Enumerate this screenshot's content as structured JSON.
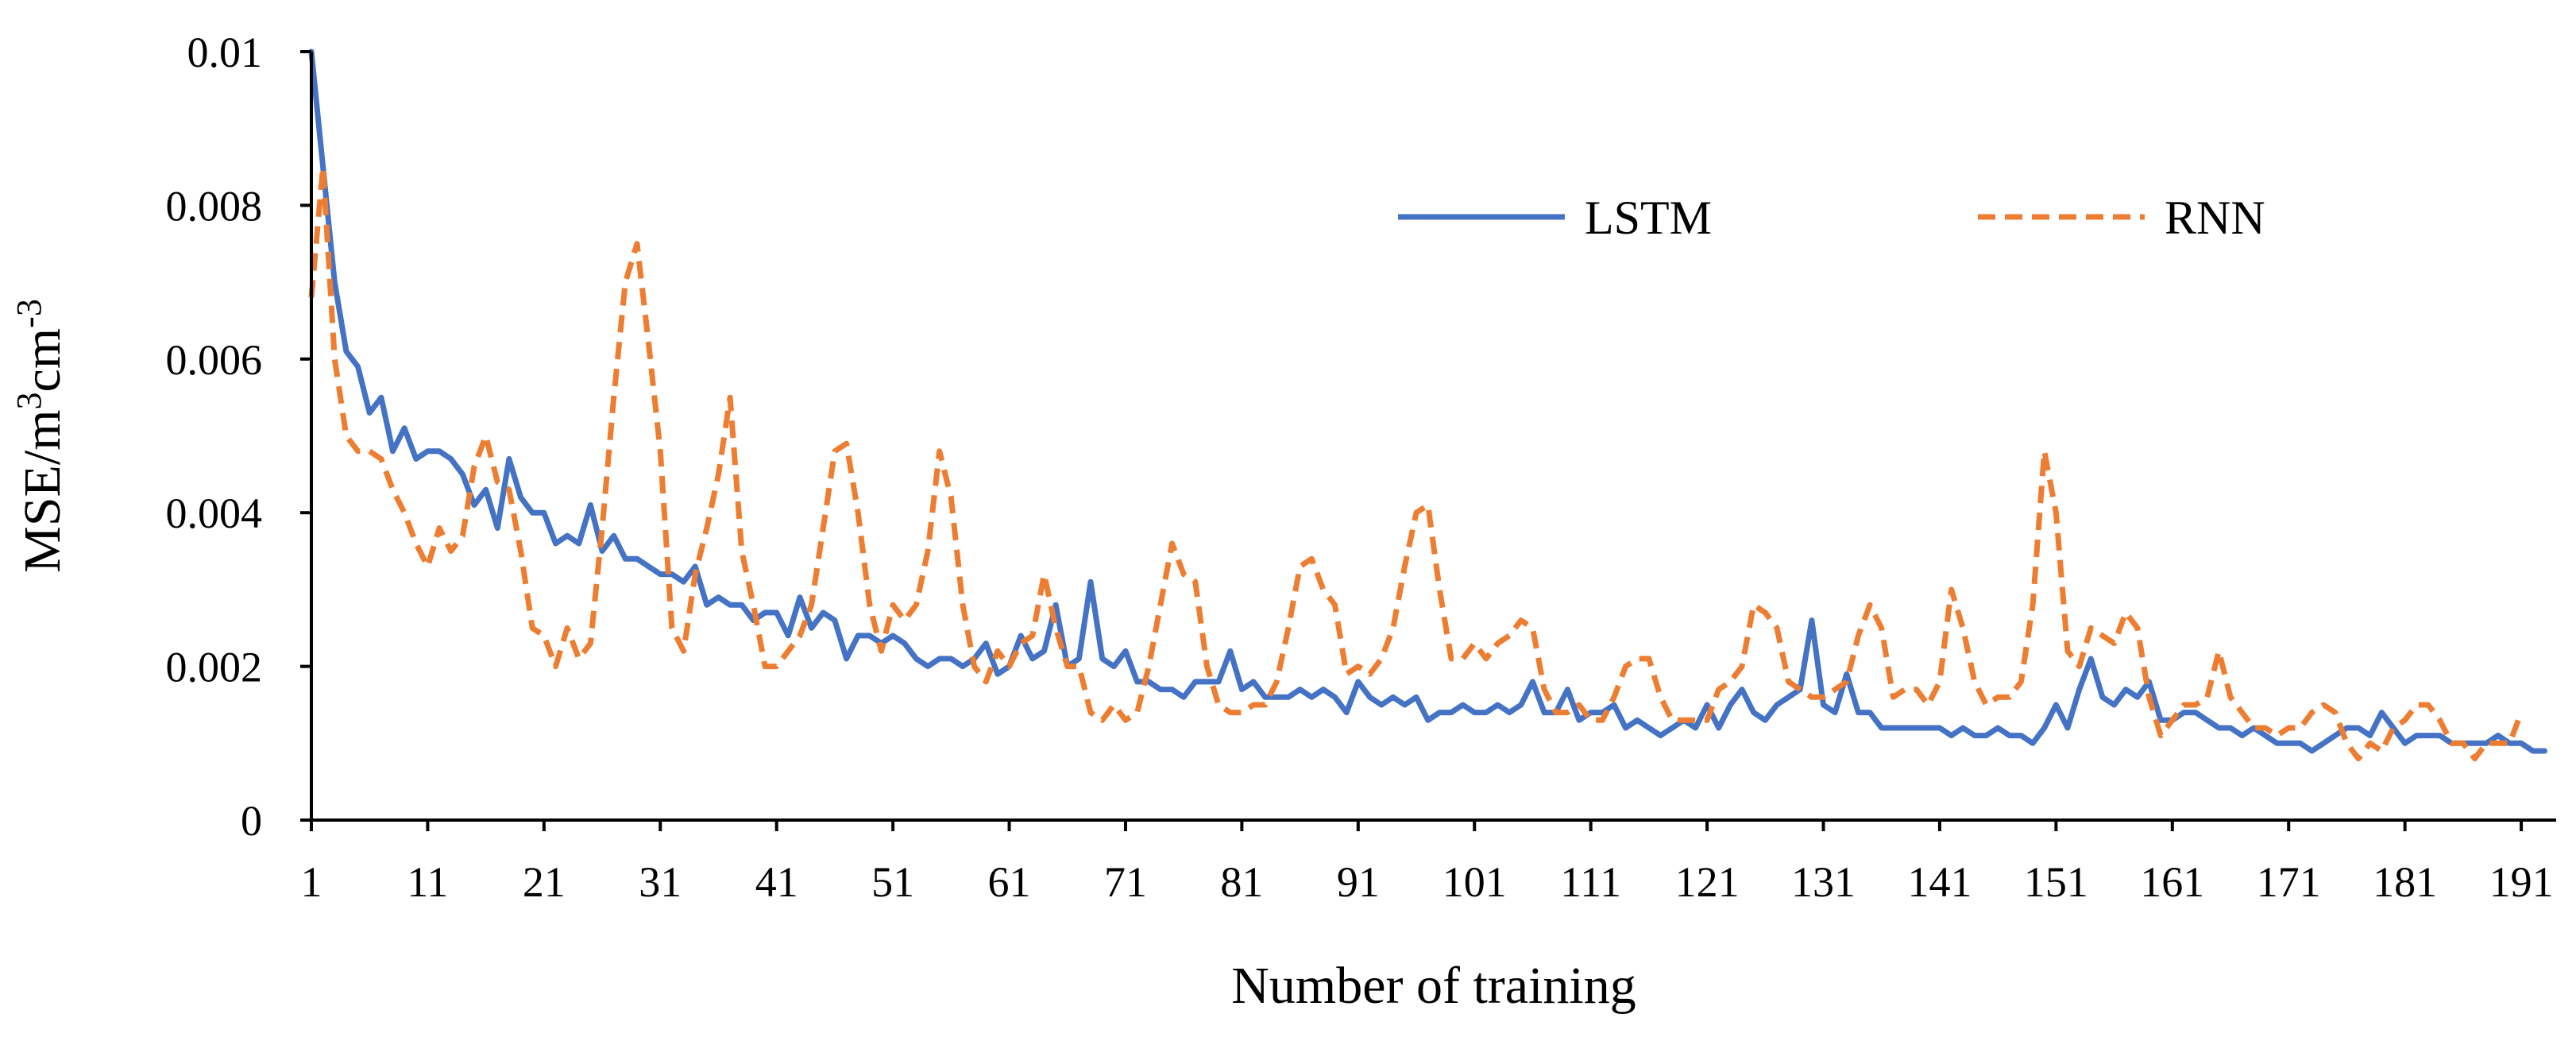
{
  "chart_data": {
    "type": "line",
    "title": "",
    "xlabel": "Number of training",
    "ylabel_parts": {
      "base": "MSE/m",
      "sup1": "3",
      "mid": "cm",
      "sup2": "-3"
    },
    "xlim": [
      1,
      194
    ],
    "ylim": [
      0,
      0.01
    ],
    "x_ticks": [
      1,
      11,
      21,
      31,
      41,
      51,
      61,
      71,
      81,
      91,
      101,
      111,
      121,
      131,
      141,
      151,
      161,
      171,
      181,
      191
    ],
    "x_tick_labels": [
      "1",
      "11",
      "21",
      "31",
      "41",
      "51",
      "61",
      "71",
      "81",
      "91",
      "101",
      "111",
      "121",
      "131",
      "141",
      "151",
      "161",
      "171",
      "181",
      "191"
    ],
    "y_ticks": [
      0,
      0.002,
      0.004,
      0.006,
      0.008,
      0.01
    ],
    "y_tick_labels": [
      "0",
      "0.002",
      "0.004",
      "0.006",
      "0.008",
      "0.01"
    ],
    "grid": false,
    "legend_position": "top-center",
    "series": [
      {
        "name": "LSTM",
        "color": "#4472C4",
        "dash": "solid",
        "x_start": 1,
        "values": [
          0.01,
          0.0085,
          0.007,
          0.0061,
          0.0059,
          0.0053,
          0.0055,
          0.0048,
          0.0051,
          0.0047,
          0.0048,
          0.0048,
          0.0047,
          0.0045,
          0.0041,
          0.0043,
          0.0038,
          0.0047,
          0.0042,
          0.004,
          0.004,
          0.0036,
          0.0037,
          0.0036,
          0.0041,
          0.0035,
          0.0037,
          0.0034,
          0.0034,
          0.0033,
          0.0032,
          0.0032,
          0.0031,
          0.0033,
          0.0028,
          0.0029,
          0.0028,
          0.0028,
          0.0026,
          0.0027,
          0.0027,
          0.0024,
          0.0029,
          0.0025,
          0.0027,
          0.0026,
          0.0021,
          0.0024,
          0.0024,
          0.0023,
          0.0024,
          0.0023,
          0.0021,
          0.002,
          0.0021,
          0.0021,
          0.002,
          0.0021,
          0.0023,
          0.0019,
          0.002,
          0.0024,
          0.0021,
          0.0022,
          0.0028,
          0.002,
          0.0021,
          0.0031,
          0.0021,
          0.002,
          0.0022,
          0.0018,
          0.0018,
          0.0017,
          0.0017,
          0.0016,
          0.0018,
          0.0018,
          0.0018,
          0.0022,
          0.0017,
          0.0018,
          0.0016,
          0.0016,
          0.0016,
          0.0017,
          0.0016,
          0.0017,
          0.0016,
          0.0014,
          0.0018,
          0.0016,
          0.0015,
          0.0016,
          0.0015,
          0.0016,
          0.0013,
          0.0014,
          0.0014,
          0.0015,
          0.0014,
          0.0014,
          0.0015,
          0.0014,
          0.0015,
          0.0018,
          0.0014,
          0.0014,
          0.0017,
          0.0013,
          0.0014,
          0.0014,
          0.0015,
          0.0012,
          0.0013,
          0.0012,
          0.0011,
          0.0012,
          0.0013,
          0.0012,
          0.0015,
          0.0012,
          0.0015,
          0.0017,
          0.0014,
          0.0013,
          0.0015,
          0.0016,
          0.0017,
          0.0026,
          0.0015,
          0.0014,
          0.0019,
          0.0014,
          0.0014,
          0.0012,
          0.0012,
          0.0012,
          0.0012,
          0.0012,
          0.0012,
          0.0011,
          0.0012,
          0.0011,
          0.0011,
          0.0012,
          0.0011,
          0.0011,
          0.001,
          0.0012,
          0.0015,
          0.0012,
          0.0017,
          0.0021,
          0.0016,
          0.0015,
          0.0017,
          0.0016,
          0.0018,
          0.0013,
          0.0013,
          0.0014,
          0.0014,
          0.0013,
          0.0012,
          0.0012,
          0.0011,
          0.0012,
          0.0011,
          0.001,
          0.001,
          0.001,
          0.0009,
          0.001,
          0.0011,
          0.0012,
          0.0012,
          0.0011,
          0.0014,
          0.0012,
          0.001,
          0.0011,
          0.0011,
          0.0011,
          0.001,
          0.001,
          0.001,
          0.001,
          0.0011,
          0.001,
          0.001,
          0.0009,
          0.0009
        ]
      },
      {
        "name": "RNN",
        "color": "#ED7D31",
        "dash": "dashed",
        "x_start": 1,
        "values": [
          0.0068,
          0.0085,
          0.006,
          0.005,
          0.0048,
          0.0048,
          0.0047,
          0.0043,
          0.004,
          0.0036,
          0.0033,
          0.0038,
          0.0035,
          0.0037,
          0.0046,
          0.005,
          0.0044,
          0.0043,
          0.0035,
          0.0025,
          0.0024,
          0.002,
          0.0025,
          0.0021,
          0.0023,
          0.0038,
          0.0055,
          0.007,
          0.0075,
          0.0062,
          0.0048,
          0.0025,
          0.0022,
          0.0032,
          0.0038,
          0.0045,
          0.0055,
          0.0035,
          0.0028,
          0.002,
          0.002,
          0.0022,
          0.0024,
          0.0028,
          0.0038,
          0.0048,
          0.0049,
          0.004,
          0.0028,
          0.0022,
          0.0028,
          0.0026,
          0.0028,
          0.0035,
          0.0048,
          0.0042,
          0.0028,
          0.002,
          0.0018,
          0.0022,
          0.002,
          0.0023,
          0.0024,
          0.0032,
          0.0025,
          0.002,
          0.002,
          0.0014,
          0.0013,
          0.0015,
          0.0013,
          0.0014,
          0.002,
          0.0028,
          0.0036,
          0.0032,
          0.0031,
          0.002,
          0.0015,
          0.0014,
          0.0014,
          0.0015,
          0.0015,
          0.0018,
          0.0025,
          0.0033,
          0.0034,
          0.003,
          0.0028,
          0.0019,
          0.002,
          0.0019,
          0.0021,
          0.0025,
          0.0033,
          0.004,
          0.0041,
          0.003,
          0.0021,
          0.0021,
          0.0023,
          0.0021,
          0.0023,
          0.0024,
          0.0026,
          0.0025,
          0.0017,
          0.0014,
          0.0014,
          0.0015,
          0.0013,
          0.0013,
          0.0016,
          0.002,
          0.0021,
          0.0021,
          0.0016,
          0.0013,
          0.0013,
          0.0013,
          0.0013,
          0.0017,
          0.0018,
          0.002,
          0.0028,
          0.0027,
          0.0025,
          0.0018,
          0.0017,
          0.0016,
          0.0016,
          0.0017,
          0.0018,
          0.0024,
          0.0028,
          0.0025,
          0.0016,
          0.0017,
          0.0017,
          0.0015,
          0.0018,
          0.003,
          0.0025,
          0.0018,
          0.0015,
          0.0016,
          0.0016,
          0.0018,
          0.0028,
          0.0048,
          0.004,
          0.0022,
          0.002,
          0.0025,
          0.0024,
          0.0023,
          0.0027,
          0.0025,
          0.0016,
          0.0011,
          0.0013,
          0.0015,
          0.0015,
          0.0016,
          0.0022,
          0.0016,
          0.0014,
          0.0012,
          0.0012,
          0.0011,
          0.0012,
          0.0012,
          0.0014,
          0.0015,
          0.0014,
          0.001,
          0.0008,
          0.001,
          0.0009,
          0.0012,
          0.0013,
          0.0015,
          0.0015,
          0.0013,
          0.001,
          0.001,
          0.0008,
          0.001,
          0.001,
          0.001,
          0.0014
        ]
      }
    ]
  }
}
